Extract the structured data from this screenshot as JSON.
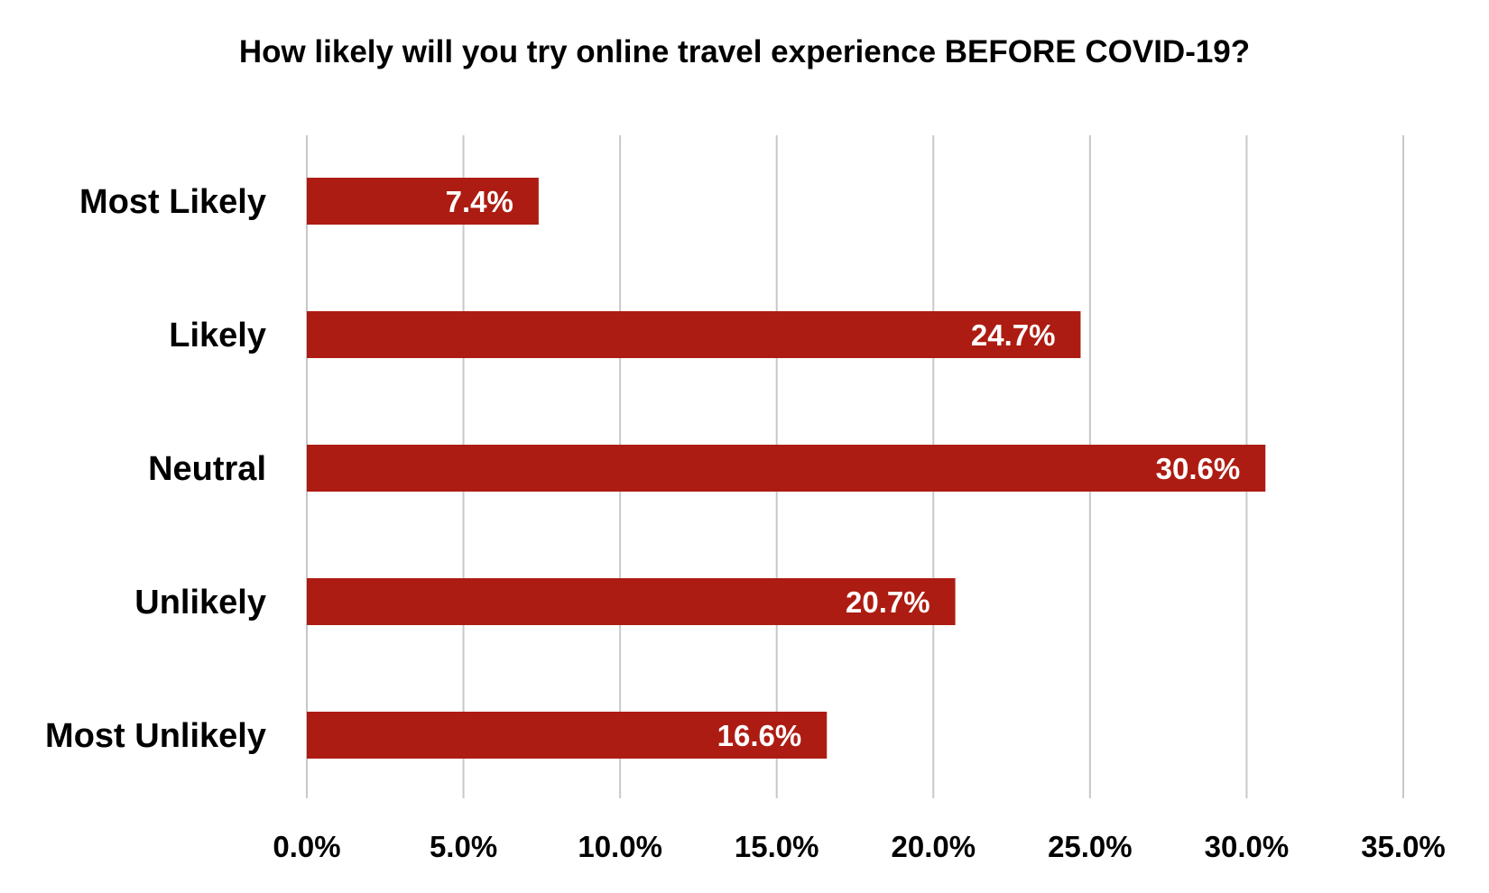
{
  "chart_data": {
    "type": "bar",
    "orientation": "horizontal",
    "title": "How likely will you try online travel experience BEFORE COVID-19?",
    "categories": [
      "Most Likely",
      "Likely",
      "Neutral",
      "Unlikely",
      "Most Unlikely"
    ],
    "values": [
      7.4,
      24.7,
      30.6,
      20.7,
      16.6
    ],
    "data_labels": [
      "7.4%",
      "24.7%",
      "30.6%",
      "20.7%",
      "16.6%"
    ],
    "xlim": [
      0,
      35
    ],
    "x_ticks": [
      0,
      5,
      10,
      15,
      20,
      25,
      30,
      35
    ],
    "x_tick_labels": [
      "0.0%",
      "5.0%",
      "10.0%",
      "15.0%",
      "20.0%",
      "25.0%",
      "30.0%",
      "35.0%"
    ],
    "xlabel": "",
    "ylabel": "",
    "grid": "vertical",
    "legend": "none",
    "colors": {
      "bar": "#ad1c12",
      "grid": "#c8c8c8",
      "label_on_bar": "#ffffff"
    }
  }
}
